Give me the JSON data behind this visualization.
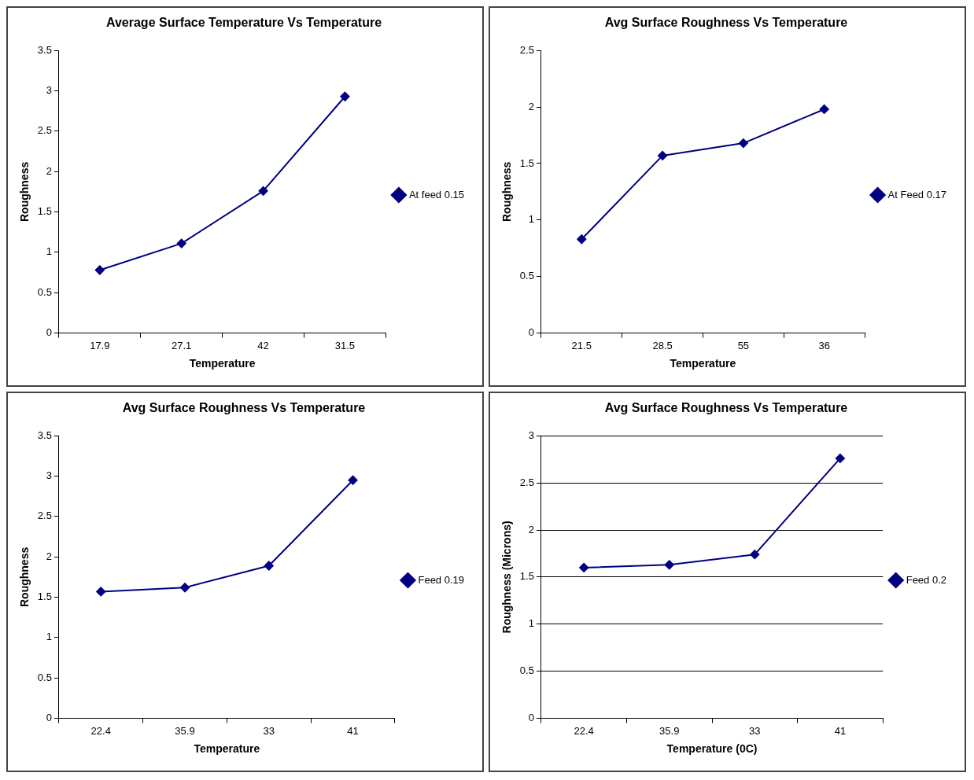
{
  "chart_data": [
    {
      "type": "line",
      "title": "Average Surface Temperature Vs Temperature",
      "xlabel": "Temperature",
      "ylabel": "Roughness",
      "categories": [
        "17.9",
        "27.1",
        "42",
        "31.5"
      ],
      "series": [
        {
          "name": "At feed 0.15",
          "color": "#000080",
          "values": [
            0.78,
            1.11,
            1.76,
            2.93
          ]
        }
      ],
      "ylim": [
        0,
        3.5
      ],
      "yticks": [
        0,
        0.5,
        1,
        1.5,
        2,
        2.5,
        3,
        3.5
      ],
      "grid": false,
      "legend": "right",
      "marker": "diamond"
    },
    {
      "type": "line",
      "title": "Avg Surface Roughness Vs Temperature",
      "xlabel": "Temperature",
      "ylabel": "Roughness",
      "categories": [
        "21.5",
        "28.5",
        "55",
        "36"
      ],
      "series": [
        {
          "name": "At Feed 0.17",
          "color": "#000080",
          "values": [
            0.83,
            1.57,
            1.68,
            1.98
          ]
        }
      ],
      "ylim": [
        0,
        2.5
      ],
      "yticks": [
        0,
        0.5,
        1,
        1.5,
        2,
        2.5
      ],
      "grid": false,
      "legend": "right",
      "marker": "diamond"
    },
    {
      "type": "line",
      "title": "Avg Surface Roughness Vs Temperature",
      "xlabel": "Temperature",
      "ylabel": "Roughness",
      "categories": [
        "22.4",
        "35.9",
        "33",
        "41"
      ],
      "series": [
        {
          "name": "Feed 0.19",
          "color": "#000080",
          "values": [
            1.57,
            1.62,
            1.89,
            2.95
          ]
        }
      ],
      "ylim": [
        0,
        3.5
      ],
      "yticks": [
        0,
        0.5,
        1,
        1.5,
        2,
        2.5,
        3,
        3.5
      ],
      "grid": false,
      "legend": "right",
      "marker": "diamond"
    },
    {
      "type": "line",
      "title": "Avg Surface Roughness Vs Temperature",
      "xlabel": "Temperature (0C)",
      "ylabel": "Roughness (Microns)",
      "categories": [
        "22.4",
        "35.9",
        "33",
        "41"
      ],
      "series": [
        {
          "name": "Feed 0.2",
          "color": "#000080",
          "values": [
            1.6,
            1.63,
            1.74,
            2.76
          ]
        }
      ],
      "ylim": [
        0,
        3
      ],
      "yticks": [
        0,
        0.5,
        1,
        1.5,
        2,
        2.5,
        3
      ],
      "grid": "y",
      "legend": "right",
      "marker": "diamond"
    }
  ]
}
